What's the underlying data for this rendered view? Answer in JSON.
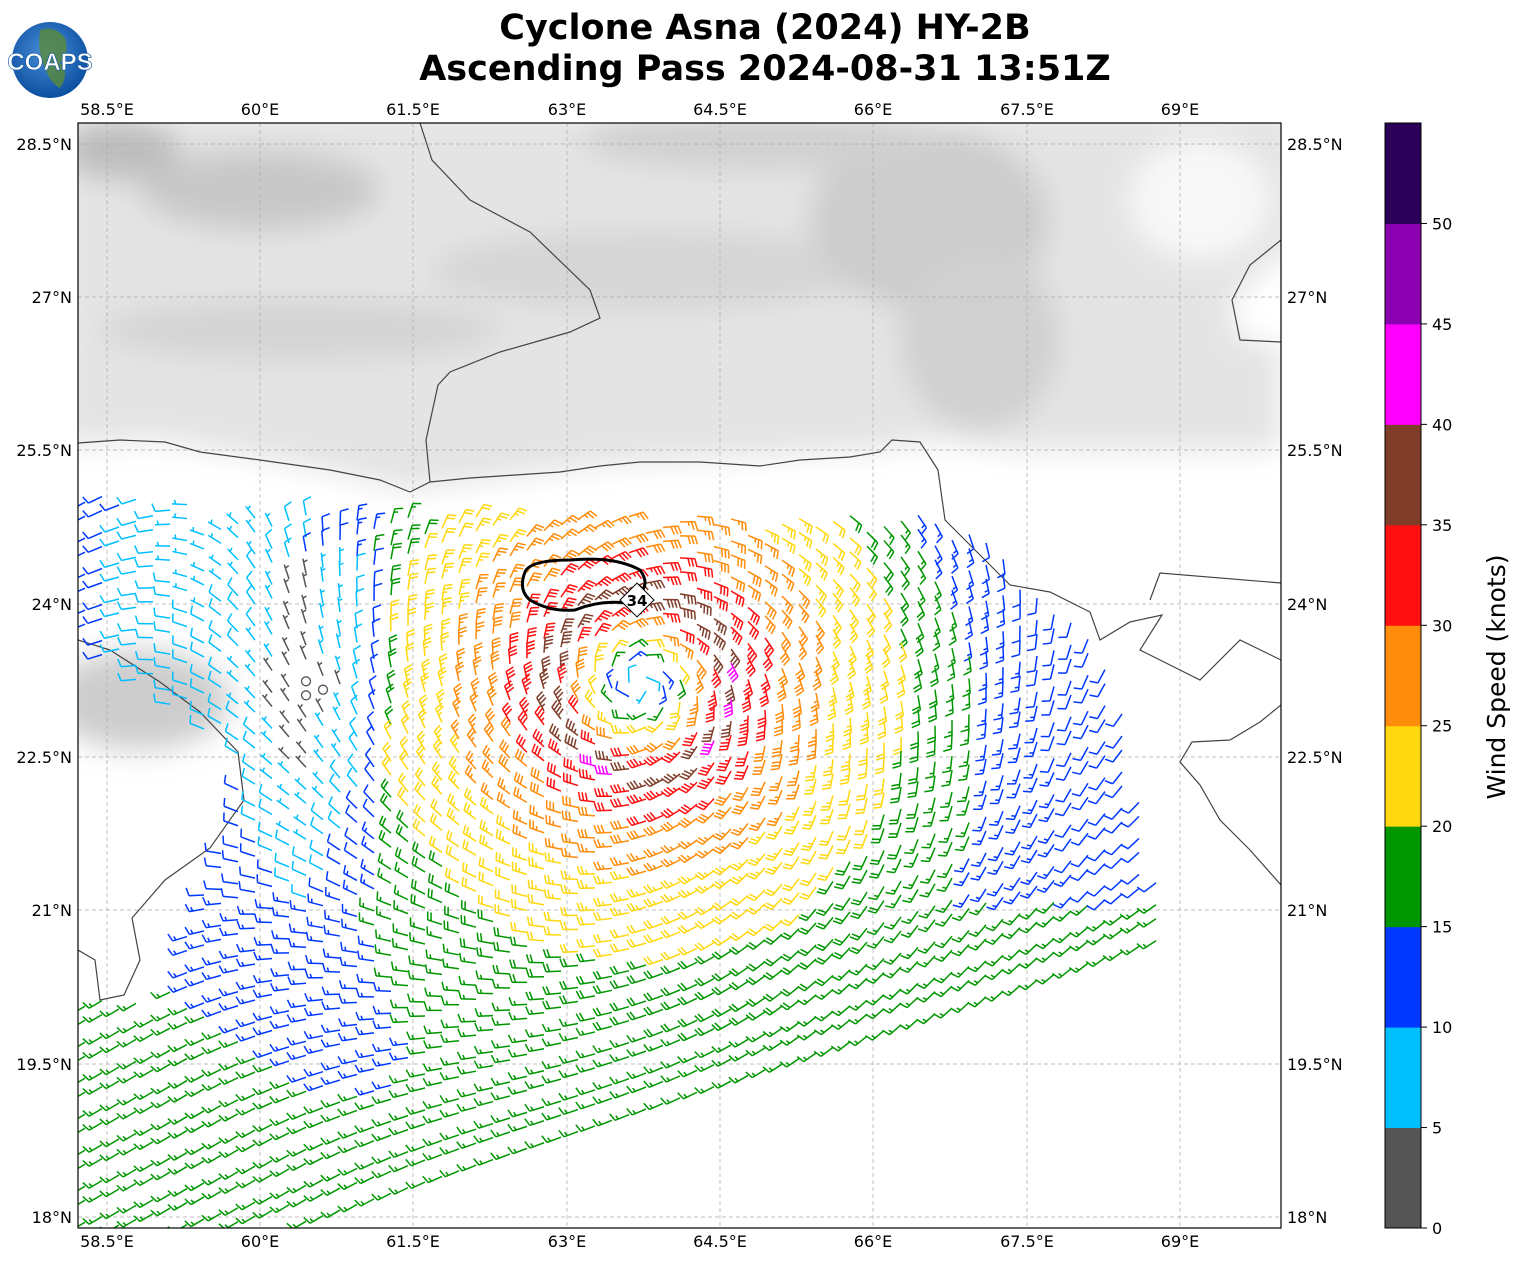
{
  "header": {
    "title_line1": "Cyclone Asna (2024) HY-2B",
    "title_line2": "Ascending Pass 2024-08-31 13:51Z",
    "logo_text": "COAPS"
  },
  "map": {
    "lon_ticks": [
      "58.5°E",
      "60°E",
      "61.5°E",
      "63°E",
      "64.5°E",
      "66°E",
      "67.5°E",
      "69°E"
    ],
    "lat_ticks": [
      "28.5°N",
      "27°N",
      "25.5°N",
      "24°N",
      "22.5°N",
      "21°N",
      "19.5°N",
      "18°N"
    ],
    "contour_label": "34",
    "barb_icon": "wind-barb"
  },
  "colorbar": {
    "label": "Wind Speed (knots)",
    "ticks": [
      "0",
      "5",
      "10",
      "15",
      "20",
      "25",
      "30",
      "35",
      "40",
      "45",
      "50"
    ],
    "colors": [
      "#555555",
      "#00bfff",
      "#0038ff",
      "#009600",
      "#ffd70f",
      "#ff8c0a",
      "#ff1010",
      "#7f3d2a",
      "#ff00ff",
      "#8b00b0",
      "#2b0058"
    ]
  }
}
